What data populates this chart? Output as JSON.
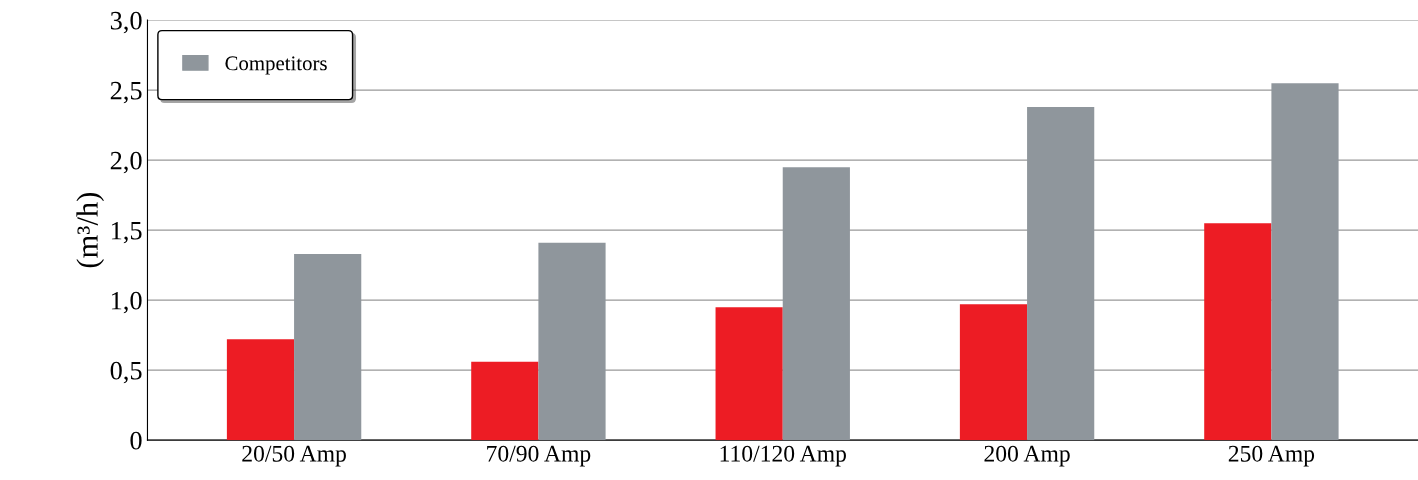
{
  "chart_data": {
    "type": "bar",
    "ylabel": "(m³/h)",
    "categories": [
      "20/50 Amp",
      "70/90 Amp",
      "110/120 Amp",
      "200 Amp",
      "250 Amp"
    ],
    "series": [
      {
        "color": "#ed1c24",
        "values": [
          0.72,
          0.56,
          0.95,
          0.97,
          1.55
        ]
      },
      {
        "name": "Competitors",
        "color": "#8f969c",
        "values": [
          1.33,
          1.41,
          1.95,
          2.38,
          2.55
        ]
      }
    ],
    "ylim": [
      0,
      3.0
    ],
    "yticks": [
      0,
      {
        "value": 0.5,
        "label": "0,5"
      },
      {
        "value": 1.0,
        "label": "1,0"
      },
      {
        "value": 1.5,
        "label": "1,5"
      },
      {
        "value": 2.0,
        "label": "2,0"
      },
      {
        "value": 2.5,
        "label": "2,5"
      },
      {
        "value": 3.0,
        "label": "3,0"
      }
    ],
    "grid": "y",
    "legend": "top left"
  }
}
